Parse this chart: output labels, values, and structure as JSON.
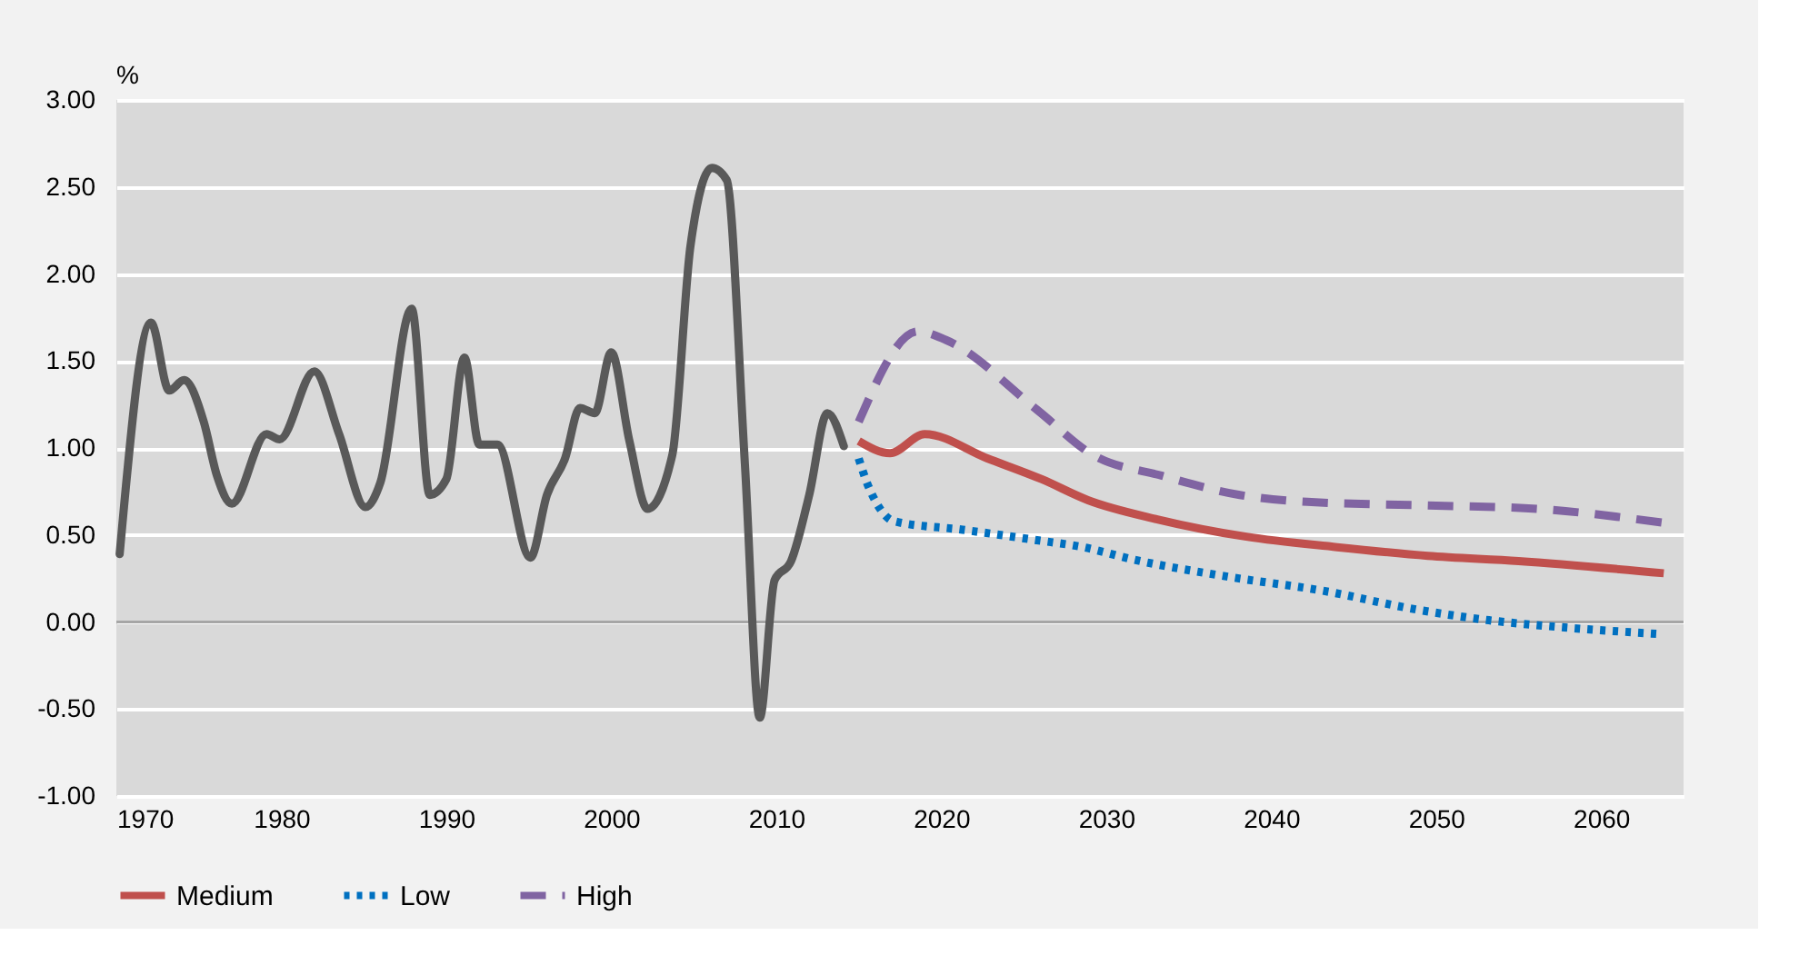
{
  "chart_data": {
    "type": "line",
    "ylabel": "%",
    "xlim": [
      1970,
      2065
    ],
    "xticks": [
      1970,
      1980,
      1990,
      2000,
      2010,
      2020,
      2030,
      2040,
      2050,
      2060
    ],
    "ylim": [
      -1,
      3
    ],
    "yticks": [
      {
        "value": -1,
        "label": "-1.00"
      },
      {
        "value": -0.5,
        "label": "-0.50"
      },
      {
        "value": 0,
        "label": "0.00"
      },
      {
        "value": 0.5,
        "label": "0.50"
      },
      {
        "value": 1,
        "label": "1.00"
      },
      {
        "value": 1.5,
        "label": "1.50"
      },
      {
        "value": 2,
        "label": "2.00"
      },
      {
        "value": 2.5,
        "label": "2.50"
      },
      {
        "value": 3,
        "label": "3.00"
      }
    ],
    "grid": "y",
    "legend": "bottom",
    "marker": "none",
    "ref_lines": [
      {
        "axis": "y",
        "value": 0,
        "color": "#a6a6a6"
      }
    ],
    "series": [
      {
        "color": "#595959",
        "line_style": "solid",
        "x": [
          1970.2,
          1972.1,
          1973.2,
          1974.1,
          1975.3,
          1976.1,
          1977.0,
          1979.1,
          1979.9,
          1982.0,
          1983.5,
          1985.1,
          1986.0,
          1987.9,
          1989.0,
          1990.0,
          1991.1,
          1992.0,
          1993.1,
          1995.1,
          1996.1,
          1997.2,
          1998.1,
          1999.0,
          2000.0,
          2001.1,
          2002.2,
          2003.7,
          2004.8,
          2006.1,
          2007.0,
          2008.1,
          2009.0,
          2009.9,
          2010.9,
          2012.0,
          2013.1,
          2014.1
        ],
        "values": [
          0.39,
          1.72,
          1.33,
          1.39,
          1.15,
          0.84,
          0.68,
          1.08,
          1.05,
          1.44,
          1.08,
          0.66,
          0.8,
          1.8,
          0.73,
          0.82,
          1.52,
          1.02,
          1.02,
          0.37,
          0.73,
          0.94,
          1.23,
          1.2,
          1.55,
          1.04,
          0.65,
          0.96,
          2.16,
          2.61,
          2.54,
          0.91,
          -0.55,
          0.24,
          0.35,
          0.73,
          1.2,
          1.01
        ]
      },
      {
        "name": "Medium",
        "color": "#c0504d",
        "line_style": "solid",
        "x": [
          2015,
          2016.9,
          2019.0,
          2022.8,
          2026.1,
          2028.9,
          2033.1,
          2038.5,
          2044.0,
          2049.5,
          2055.0,
          2063.8
        ],
        "values": [
          1.04,
          0.97,
          1.08,
          0.94,
          0.82,
          0.7,
          0.59,
          0.49,
          0.43,
          0.38,
          0.35,
          0.28
        ]
      },
      {
        "name": "Low",
        "color": "#0070c0",
        "line_style": "dotted",
        "x": [
          2015,
          2015.5,
          2016.1,
          2017.1,
          2021.3,
          2025.8,
          2028.6,
          2031.6,
          2037.4,
          2043.1,
          2048.9,
          2053.2,
          2057.6,
          2063.7
        ],
        "values": [
          0.94,
          0.8,
          0.68,
          0.58,
          0.53,
          0.47,
          0.43,
          0.36,
          0.26,
          0.18,
          0.07,
          0.01,
          -0.03,
          -0.07
        ]
      },
      {
        "name": "High",
        "color": "#8064a2",
        "line_style": "dashed",
        "x": [
          2015,
          2018.6,
          2020.3,
          2025.8,
          2029.2,
          2033.4,
          2038.1,
          2042.2,
          2049.5,
          2056.1,
          2063.8
        ],
        "values": [
          1.15,
          1.67,
          1.62,
          1.22,
          0.96,
          0.84,
          0.73,
          0.69,
          0.67,
          0.65,
          0.57
        ]
      }
    ]
  }
}
